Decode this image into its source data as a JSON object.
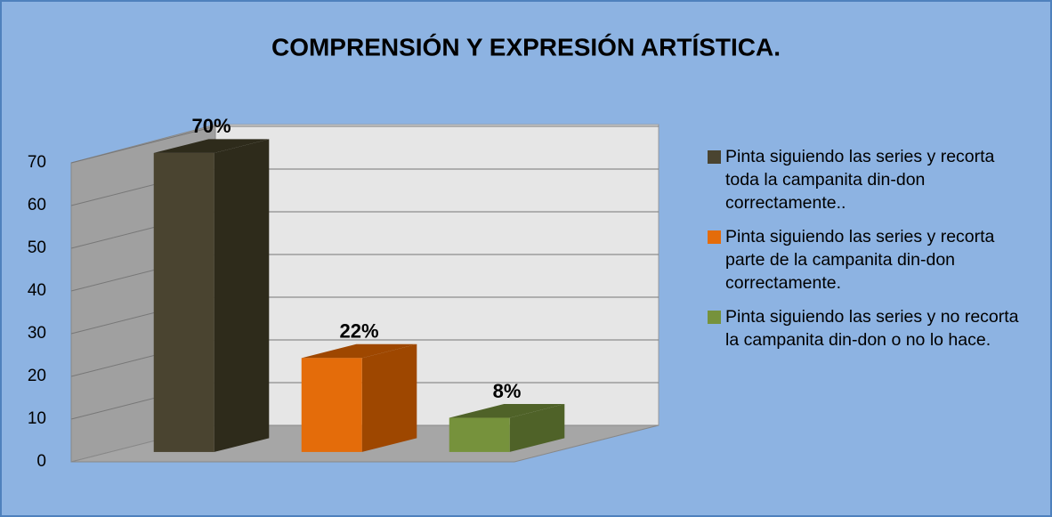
{
  "chart_data": {
    "type": "bar3d",
    "title": "COMPRENSIÓN Y EXPRESIÓN ARTÍSTICA.",
    "categories": [
      "Pinta siguiendo las series y recorta toda la campanita din-don correctamente..",
      "Pinta siguiendo las series y recorta parte de la campanita din-don correctamente.",
      "Pinta siguiendo las series y no recorta la campanita din-don o no lo hace."
    ],
    "values": [
      70,
      22,
      8
    ],
    "value_labels": [
      "70%",
      "22%",
      "8%"
    ],
    "colors": [
      "#4a4430",
      "#e46c0a",
      "#76923c"
    ],
    "side_colors": [
      "#2e2b1b",
      "#9e4700",
      "#4f6228"
    ],
    "ylim": [
      0,
      70
    ],
    "yticks": [
      0,
      10,
      20,
      30,
      40,
      50,
      60,
      70
    ],
    "grid": true,
    "legend": "right"
  }
}
